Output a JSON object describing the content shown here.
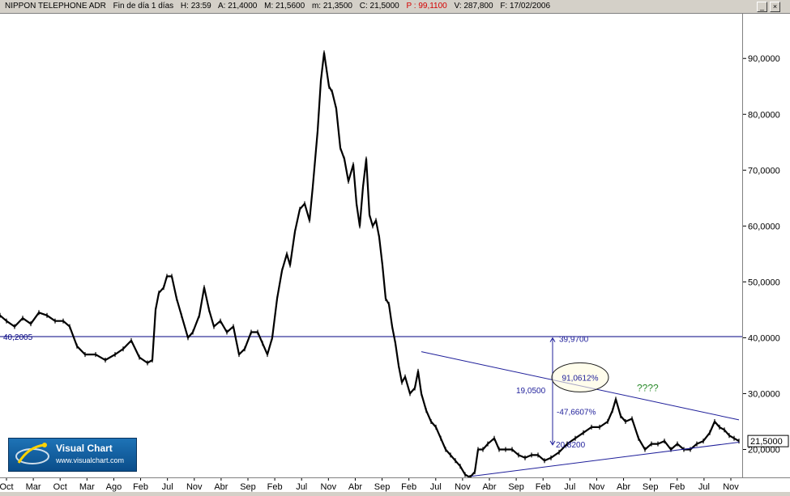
{
  "header": {
    "symbol": "NIPPON TELEPHONE ADR",
    "period": "Fin de día 1 días",
    "hour": "H: 23:59",
    "open": "A: 21,4000",
    "high": "M: 21,5600",
    "low": "m: 21,3500",
    "close": "C: 21,5000",
    "pct": "P : 99,1100",
    "volume": "V: 287,800",
    "date": "F: 17/02/2006"
  },
  "window": {
    "min": "_",
    "close": "×"
  },
  "logo": {
    "name": "Visual Chart",
    "url": "www.visualchart.com"
  },
  "chart_data": {
    "type": "line",
    "title": "NIPPON TELEPHONE ADR",
    "x_ticks": [
      "Oct",
      "Mar",
      "Oct",
      "Mar",
      "Ago",
      "Feb",
      "Jul",
      "Nov",
      "Abr",
      "Sep",
      "Feb",
      "Jul",
      "Nov",
      "Abr",
      "Sep",
      "Feb",
      "Jul",
      "Nov",
      "Abr",
      "Sep",
      "Feb",
      "Jul",
      "Nov",
      "Abr",
      "Sep",
      "Feb",
      "Jul",
      "Nov"
    ],
    "y_ticks": [
      "90,0000",
      "80,0000",
      "70,0000",
      "60,0000",
      "50,0000",
      "40,0000",
      "30,0000",
      "20,0000"
    ],
    "ylim": [
      15,
      98
    ],
    "last_price_label": "21,5000",
    "series": [
      {
        "values": [
          [
            0,
            44
          ],
          [
            8,
            43
          ],
          [
            18,
            42
          ],
          [
            28,
            43.5
          ],
          [
            38,
            42.5
          ],
          [
            48,
            44.5
          ],
          [
            58,
            44
          ],
          [
            68,
            43
          ],
          [
            78,
            43
          ],
          [
            86,
            42
          ],
          [
            95,
            38.5
          ],
          [
            105,
            37
          ],
          [
            118,
            37
          ],
          [
            130,
            36
          ],
          [
            142,
            37
          ],
          [
            152,
            38
          ],
          [
            162,
            39.5
          ],
          [
            172,
            36.5
          ],
          [
            182,
            35.5
          ],
          [
            188,
            36
          ],
          [
            192,
            45
          ],
          [
            196,
            48
          ],
          [
            202,
            49
          ],
          [
            206,
            51
          ],
          [
            212,
            51
          ],
          [
            218,
            47
          ],
          [
            224,
            44
          ],
          [
            232,
            40
          ],
          [
            238,
            41
          ],
          [
            246,
            44
          ],
          [
            252,
            49
          ],
          [
            258,
            45
          ],
          [
            264,
            42
          ],
          [
            272,
            43
          ],
          [
            280,
            41
          ],
          [
            288,
            42
          ],
          [
            295,
            37
          ],
          [
            302,
            38
          ],
          [
            310,
            41
          ],
          [
            318,
            41
          ],
          [
            324,
            39
          ],
          [
            330,
            37
          ],
          [
            336,
            40
          ],
          [
            342,
            47
          ],
          [
            348,
            52
          ],
          [
            354,
            55
          ],
          [
            358,
            53
          ],
          [
            364,
            59
          ],
          [
            370,
            63
          ],
          [
            376,
            64
          ],
          [
            382,
            61
          ],
          [
            386,
            67
          ],
          [
            392,
            77
          ],
          [
            396,
            86
          ],
          [
            400,
            91
          ],
          [
            403,
            88
          ],
          [
            406,
            85
          ],
          [
            410,
            84
          ],
          [
            415,
            81
          ],
          [
            420,
            74
          ],
          [
            425,
            72
          ],
          [
            430,
            68
          ],
          [
            436,
            71
          ],
          [
            440,
            64
          ],
          [
            444,
            60
          ],
          [
            448,
            67
          ],
          [
            452,
            72
          ],
          [
            456,
            62
          ],
          [
            460,
            60
          ],
          [
            464,
            61
          ],
          [
            468,
            58
          ],
          [
            472,
            53
          ],
          [
            476,
            47
          ],
          [
            480,
            46
          ],
          [
            484,
            42
          ],
          [
            488,
            39
          ],
          [
            492,
            35
          ],
          [
            496,
            32
          ],
          [
            500,
            33
          ],
          [
            506,
            30
          ],
          [
            512,
            31
          ],
          [
            516,
            34
          ],
          [
            520,
            30
          ],
          [
            526,
            27
          ],
          [
            532,
            25
          ],
          [
            538,
            24
          ],
          [
            544,
            22
          ],
          [
            550,
            20
          ],
          [
            556,
            19
          ],
          [
            562,
            18
          ],
          [
            568,
            17
          ],
          [
            574,
            15.5
          ],
          [
            580,
            15
          ],
          [
            586,
            16
          ],
          [
            590,
            20
          ],
          [
            596,
            20
          ],
          [
            602,
            21
          ],
          [
            610,
            22
          ],
          [
            616,
            20
          ],
          [
            624,
            20
          ],
          [
            632,
            20
          ],
          [
            640,
            19
          ],
          [
            648,
            18.5
          ],
          [
            656,
            19
          ],
          [
            664,
            19
          ],
          [
            672,
            18
          ],
          [
            680,
            18.5
          ],
          [
            690,
            19.5
          ],
          [
            700,
            21
          ],
          [
            710,
            22
          ],
          [
            720,
            23
          ],
          [
            730,
            24
          ],
          [
            740,
            24
          ],
          [
            750,
            25
          ],
          [
            756,
            27
          ],
          [
            760,
            29
          ],
          [
            766,
            26
          ],
          [
            772,
            25
          ],
          [
            780,
            25.5
          ],
          [
            788,
            22
          ],
          [
            796,
            20
          ],
          [
            804,
            21
          ],
          [
            812,
            21
          ],
          [
            820,
            21.5
          ],
          [
            828,
            20
          ],
          [
            836,
            21
          ],
          [
            844,
            20
          ],
          [
            852,
            20
          ],
          [
            860,
            21
          ],
          [
            868,
            21.5
          ],
          [
            876,
            23
          ],
          [
            882,
            25
          ],
          [
            888,
            24
          ],
          [
            894,
            23.5
          ],
          [
            900,
            22.5
          ],
          [
            906,
            22
          ],
          [
            912,
            21.5
          ]
        ]
      }
    ],
    "horizontal_line": {
      "y": 40.2,
      "label": "40,2005"
    },
    "trendlines": [
      {
        "points": [
          [
            520,
            37.5
          ],
          [
            912,
            25.3
          ]
        ]
      },
      {
        "points": [
          [
            582,
            15.2
          ],
          [
            912,
            21.3
          ]
        ]
      }
    ],
    "measure": {
      "top_label": "39,9700",
      "left_label": "19,0500",
      "mid_label": "-47,6607%",
      "bottom_label": "20,8200",
      "circled_label": "91,0612%",
      "question": "????"
    }
  }
}
